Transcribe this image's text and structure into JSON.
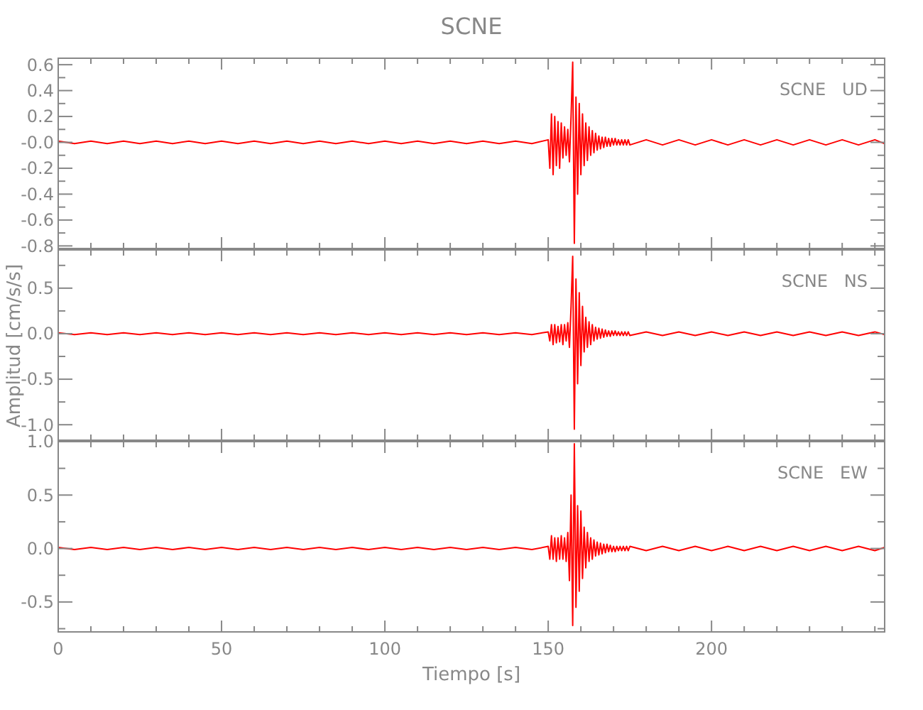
{
  "chart_data": [
    {
      "type": "line",
      "title": "SCNE",
      "annotations": [
        "SCNE   UD"
      ],
      "tick_labels": "y",
      "x": [
        0,
        5,
        10,
        15,
        20,
        25,
        30,
        35,
        40,
        45,
        50,
        55,
        60,
        65,
        70,
        75,
        80,
        85,
        90,
        95,
        100,
        105,
        110,
        115,
        120,
        125,
        130,
        135,
        140,
        145,
        150,
        150.5,
        151,
        151.5,
        152,
        152.5,
        153,
        153.5,
        154,
        154.5,
        155,
        155.5,
        156,
        156.5,
        157,
        157.5,
        158,
        158.5,
        159,
        159.5,
        160,
        160.5,
        161,
        161.5,
        162,
        162.5,
        163,
        163.5,
        164,
        164.5,
        165,
        165.5,
        166,
        166.5,
        167,
        167.5,
        168,
        168.5,
        169,
        169.5,
        170,
        170.5,
        171,
        171.5,
        172,
        172.5,
        173,
        173.5,
        174,
        174.5,
        175,
        180,
        185,
        190,
        195,
        200,
        205,
        210,
        215,
        220,
        225,
        230,
        235,
        240,
        245,
        250,
        253
      ],
      "series": [
        {
          "color": "#ff0000",
          "values": [
            0.01,
            -0.01,
            0.01,
            -0.01,
            0.01,
            -0.01,
            0.01,
            -0.01,
            0.01,
            -0.01,
            0.01,
            -0.01,
            0.01,
            -0.01,
            0.01,
            -0.01,
            0.01,
            -0.01,
            0.01,
            -0.01,
            0.01,
            -0.01,
            0.01,
            -0.01,
            0.01,
            -0.01,
            0.01,
            -0.01,
            0.01,
            -0.01,
            0.02,
            -0.2,
            0.22,
            -0.25,
            0.2,
            -0.18,
            0.16,
            -0.2,
            0.15,
            -0.12,
            0.12,
            -0.1,
            0.1,
            -0.15,
            0.2,
            0.62,
            -0.78,
            0.35,
            -0.4,
            0.3,
            -0.25,
            0.22,
            -0.18,
            0.15,
            -0.14,
            0.12,
            -0.1,
            0.09,
            -0.08,
            0.07,
            -0.06,
            0.05,
            -0.05,
            0.04,
            -0.04,
            0.04,
            -0.03,
            0.03,
            -0.03,
            0.03,
            -0.02,
            0.03,
            -0.02,
            0.02,
            -0.02,
            0.02,
            -0.02,
            0.02,
            -0.02,
            0.02,
            -0.02,
            0.02,
            -0.02,
            0.02,
            -0.02,
            0.02,
            -0.02,
            0.02,
            -0.02,
            0.02,
            -0.02,
            0.02,
            -0.02,
            0.02,
            -0.02,
            0.02,
            -0.01
          ]
        }
      ],
      "xlim": [
        0,
        253
      ],
      "xticks": [
        0,
        {
          "value": 10,
          "label": null
        },
        {
          "value": 20,
          "label": null
        },
        {
          "value": 30,
          "label": null
        },
        {
          "value": 40,
          "label": null
        },
        50,
        {
          "value": 60,
          "label": null
        },
        {
          "value": 70,
          "label": null
        },
        {
          "value": 80,
          "label": null
        },
        {
          "value": 90,
          "label": null
        },
        100,
        {
          "value": 110,
          "label": null
        },
        {
          "value": 120,
          "label": null
        },
        {
          "value": 130,
          "label": null
        },
        {
          "value": 140,
          "label": null
        },
        150,
        {
          "value": 160,
          "label": null
        },
        {
          "value": 170,
          "label": null
        },
        {
          "value": 180,
          "label": null
        },
        {
          "value": 190,
          "label": null
        },
        200,
        {
          "value": 210,
          "label": null
        },
        {
          "value": 220,
          "label": null
        },
        {
          "value": 230,
          "label": null
        },
        {
          "value": 240,
          "label": null
        },
        {
          "value": 250,
          "label": null
        }
      ],
      "ylim": [
        -0.82,
        0.65
      ],
      "yticks": [
        {
          "value": 0.6,
          "label": "0.6"
        },
        {
          "value": 0.5,
          "label": null
        },
        {
          "value": 0.4,
          "label": "0.4"
        },
        {
          "value": 0.3,
          "label": null
        },
        {
          "value": 0.2,
          "label": "0.2"
        },
        {
          "value": 0.1,
          "label": null
        },
        {
          "value": 0,
          "label": "-0.0"
        },
        {
          "value": -0.1,
          "label": null
        },
        {
          "value": -0.2,
          "label": "-0.2"
        },
        {
          "value": -0.3,
          "label": null
        },
        {
          "value": -0.4,
          "label": "-0.4"
        },
        {
          "value": -0.5,
          "label": null
        },
        {
          "value": -0.6,
          "label": "-0.6"
        },
        {
          "value": -0.7,
          "label": null
        },
        {
          "value": -0.8,
          "label": "-0.8"
        }
      ]
    },
    {
      "type": "line",
      "ylabel": "Amplitud [cm/s/s]",
      "annotations": [
        "SCNE   NS"
      ],
      "tick_labels": "y",
      "x": [
        0,
        5,
        10,
        15,
        20,
        25,
        30,
        35,
        40,
        45,
        50,
        55,
        60,
        65,
        70,
        75,
        80,
        85,
        90,
        95,
        100,
        105,
        110,
        115,
        120,
        125,
        130,
        135,
        140,
        145,
        150,
        150.5,
        151,
        151.5,
        152,
        152.5,
        153,
        153.5,
        154,
        154.5,
        155,
        155.5,
        156,
        156.5,
        157,
        157.5,
        158,
        158.5,
        159,
        159.5,
        160,
        160.5,
        161,
        161.5,
        162,
        162.5,
        163,
        163.5,
        164,
        164.5,
        165,
        165.5,
        166,
        166.5,
        167,
        167.5,
        168,
        168.5,
        169,
        169.5,
        170,
        170.5,
        171,
        171.5,
        172,
        172.5,
        173,
        173.5,
        174,
        174.5,
        175,
        180,
        185,
        190,
        195,
        200,
        205,
        210,
        215,
        220,
        225,
        230,
        235,
        240,
        245,
        250,
        253
      ],
      "series": [
        {
          "color": "#ff0000",
          "values": [
            0.01,
            -0.01,
            0.01,
            -0.01,
            0.01,
            -0.01,
            0.01,
            -0.01,
            0.01,
            -0.01,
            0.01,
            -0.01,
            0.01,
            -0.01,
            0.01,
            -0.01,
            0.01,
            -0.01,
            0.01,
            -0.01,
            0.01,
            -0.01,
            0.01,
            -0.01,
            0.01,
            -0.01,
            0.01,
            -0.01,
            0.01,
            -0.01,
            0.02,
            -0.08,
            0.1,
            -0.12,
            0.1,
            -0.1,
            0.08,
            -0.09,
            0.1,
            -0.12,
            0.1,
            -0.08,
            0.12,
            -0.15,
            0.3,
            0.85,
            -1.05,
            0.6,
            -0.55,
            0.45,
            -0.35,
            0.3,
            -0.2,
            0.18,
            -0.15,
            0.13,
            -0.12,
            0.1,
            -0.08,
            0.07,
            -0.06,
            0.06,
            -0.05,
            0.05,
            -0.04,
            0.04,
            -0.03,
            0.03,
            -0.03,
            0.03,
            -0.02,
            0.03,
            -0.02,
            0.02,
            -0.02,
            0.02,
            -0.02,
            0.02,
            -0.02,
            0.02,
            -0.02,
            0.02,
            -0.02,
            0.02,
            -0.02,
            0.02,
            -0.02,
            0.02,
            -0.02,
            0.02,
            -0.02,
            0.02,
            -0.02,
            0.02,
            -0.02,
            0.02,
            -0.01
          ]
        }
      ],
      "xlim": [
        0,
        253
      ],
      "xticks": [
        0,
        {
          "value": 10,
          "label": null
        },
        {
          "value": 20,
          "label": null
        },
        {
          "value": 30,
          "label": null
        },
        {
          "value": 40,
          "label": null
        },
        50,
        {
          "value": 60,
          "label": null
        },
        {
          "value": 70,
          "label": null
        },
        {
          "value": 80,
          "label": null
        },
        {
          "value": 90,
          "label": null
        },
        100,
        {
          "value": 110,
          "label": null
        },
        {
          "value": 120,
          "label": null
        },
        {
          "value": 130,
          "label": null
        },
        {
          "value": 140,
          "label": null
        },
        150,
        {
          "value": 160,
          "label": null
        },
        {
          "value": 170,
          "label": null
        },
        {
          "value": 180,
          "label": null
        },
        {
          "value": 190,
          "label": null
        },
        200,
        {
          "value": 210,
          "label": null
        },
        {
          "value": 220,
          "label": null
        },
        {
          "value": 230,
          "label": null
        },
        {
          "value": 240,
          "label": null
        },
        {
          "value": 250,
          "label": null
        }
      ],
      "ylim": [
        -1.17,
        0.92
      ],
      "yticks": [
        {
          "value": 0.75,
          "label": null
        },
        {
          "value": 0.5,
          "label": "0.5"
        },
        {
          "value": 0.25,
          "label": null
        },
        {
          "value": 0,
          "label": "0.0"
        },
        {
          "value": -0.25,
          "label": null
        },
        {
          "value": -0.5,
          "label": "-0.5"
        },
        {
          "value": -0.75,
          "label": null
        },
        {
          "value": -1,
          "label": "-1.0"
        }
      ]
    },
    {
      "type": "line",
      "xlabel": "Tiempo [s]",
      "annotations": [
        "SCNE   EW"
      ],
      "x": [
        0,
        5,
        10,
        15,
        20,
        25,
        30,
        35,
        40,
        45,
        50,
        55,
        60,
        65,
        70,
        75,
        80,
        85,
        90,
        95,
        100,
        105,
        110,
        115,
        120,
        125,
        130,
        135,
        140,
        145,
        150,
        150.5,
        151,
        151.5,
        152,
        152.5,
        153,
        153.5,
        154,
        154.5,
        155,
        155.5,
        156,
        156.5,
        157,
        157.5,
        158,
        158.5,
        159,
        159.5,
        160,
        160.5,
        161,
        161.5,
        162,
        162.5,
        163,
        163.5,
        164,
        164.5,
        165,
        165.5,
        166,
        166.5,
        167,
        167.5,
        168,
        168.5,
        169,
        169.5,
        170,
        170.5,
        171,
        171.5,
        172,
        172.5,
        173,
        173.5,
        174,
        174.5,
        175,
        180,
        185,
        190,
        195,
        200,
        205,
        210,
        215,
        220,
        225,
        230,
        235,
        240,
        245,
        250,
        253
      ],
      "series": [
        {
          "color": "#ff0000",
          "values": [
            0.01,
            -0.01,
            0.01,
            -0.01,
            0.01,
            -0.01,
            0.01,
            -0.01,
            0.01,
            -0.01,
            0.01,
            -0.01,
            0.01,
            -0.01,
            0.01,
            -0.01,
            0.01,
            -0.01,
            0.01,
            -0.01,
            0.01,
            -0.01,
            0.01,
            -0.01,
            0.01,
            -0.01,
            0.01,
            -0.01,
            0.01,
            -0.01,
            0.02,
            -0.1,
            0.12,
            -0.1,
            0.1,
            -0.12,
            0.1,
            -0.1,
            0.12,
            -0.1,
            0.1,
            -0.12,
            0.15,
            -0.3,
            0.5,
            -0.72,
            0.98,
            -0.55,
            0.4,
            -0.4,
            0.35,
            -0.28,
            0.2,
            -0.18,
            0.15,
            -0.12,
            0.1,
            -0.1,
            0.08,
            -0.07,
            0.06,
            -0.06,
            0.05,
            -0.05,
            0.04,
            -0.04,
            0.04,
            -0.03,
            0.03,
            -0.03,
            0.02,
            -0.03,
            0.02,
            -0.02,
            0.02,
            -0.02,
            0.02,
            -0.02,
            0.02,
            -0.02,
            0.02,
            -0.02,
            0.02,
            -0.02,
            0.02,
            -0.02,
            0.02,
            -0.02,
            0.02,
            -0.02,
            0.02,
            -0.02,
            0.02,
            -0.02,
            0.02,
            -0.02,
            0.01
          ]
        }
      ],
      "xlim": [
        0,
        253
      ],
      "xticks": [
        0,
        {
          "value": 10,
          "label": null
        },
        {
          "value": 20,
          "label": null
        },
        {
          "value": 30,
          "label": null
        },
        {
          "value": 40,
          "label": null
        },
        50,
        {
          "value": 60,
          "label": null
        },
        {
          "value": 70,
          "label": null
        },
        {
          "value": 80,
          "label": null
        },
        {
          "value": 90,
          "label": null
        },
        100,
        {
          "value": 110,
          "label": null
        },
        {
          "value": 120,
          "label": null
        },
        {
          "value": 130,
          "label": null
        },
        {
          "value": 140,
          "label": null
        },
        150,
        {
          "value": 160,
          "label": null
        },
        {
          "value": 170,
          "label": null
        },
        {
          "value": 180,
          "label": null
        },
        {
          "value": 190,
          "label": null
        },
        200,
        {
          "value": 210,
          "label": null
        },
        {
          "value": 220,
          "label": null
        },
        {
          "value": 230,
          "label": null
        },
        {
          "value": 240,
          "label": null
        },
        {
          "value": 250,
          "label": null
        }
      ],
      "ylim": [
        -0.78,
        1.0
      ],
      "yticks": [
        {
          "value": 1,
          "label": "1.0"
        },
        {
          "value": 0.75,
          "label": null
        },
        {
          "value": 0.5,
          "label": "0.5"
        },
        {
          "value": 0.25,
          "label": null
        },
        {
          "value": 0,
          "label": "0.0"
        },
        {
          "value": -0.25,
          "label": null
        },
        {
          "value": -0.5,
          "label": "-0.5"
        },
        {
          "value": -0.75,
          "label": null
        }
      ]
    }
  ]
}
